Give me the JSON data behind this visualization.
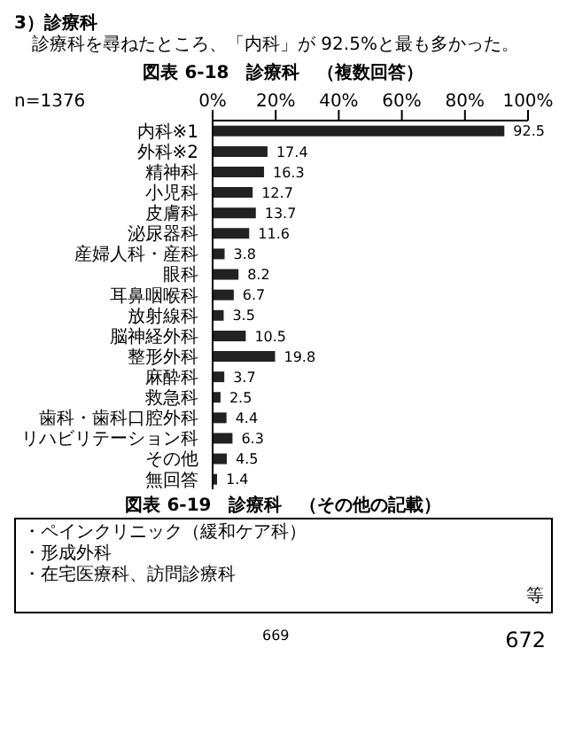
{
  "chart_data": {
    "type": "bar",
    "orientation": "horizontal",
    "title": "図表 6-18　診療科　（複数回答）",
    "categories": [
      "内科※1",
      "外科※2",
      "精神科",
      "小児科",
      "皮膚科",
      "泌尿器科",
      "産婦人科・産科",
      "眼科",
      "耳鼻咽喉科",
      "放射線科",
      "脳神経外科",
      "整形外科",
      "麻酔科",
      "救急科",
      "歯科・歯科口腔外科",
      "リハビリテーション科",
      "その他",
      "無回答"
    ],
    "values": [
      92.5,
      17.4,
      16.3,
      12.7,
      13.7,
      11.6,
      3.8,
      8.2,
      6.7,
      3.5,
      10.5,
      19.8,
      3.7,
      2.5,
      4.4,
      6.3,
      4.5,
      1.4
    ],
    "color": "#222222",
    "data_labels": true,
    "grid": false,
    "xlim": [
      0,
      100
    ],
    "xticks": [
      {
        "value": 0,
        "label": "0%"
      },
      {
        "value": 20,
        "label": "20%"
      },
      {
        "value": 40,
        "label": "40%"
      },
      {
        "value": 60,
        "label": "60%"
      },
      {
        "value": 80,
        "label": "80%"
      },
      {
        "value": 100,
        "label": "100%"
      }
    ],
    "annotations": [
      "n=1376",
      "3）診療科",
      "診療科を尋ねたところ、「内科」が 92.5%と最も多かった。",
      "図表 6-19　診療科　（その他の記載）",
      "・ペインクリニック（緩和ケア科）",
      "・形成外科",
      "・在宅医療科、訪問診療科",
      "等",
      "669",
      "672"
    ]
  }
}
